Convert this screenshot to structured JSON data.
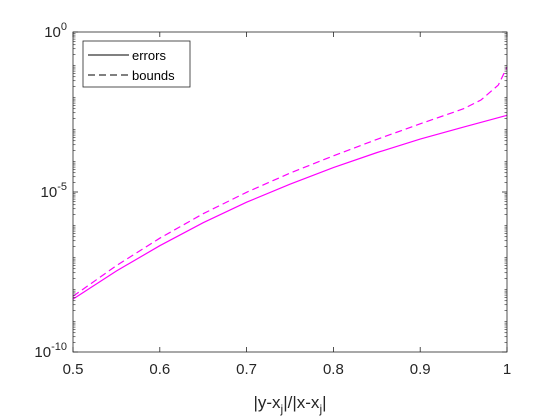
{
  "chart_data": {
    "type": "line",
    "title": "",
    "xlabel": {
      "parts": [
        {
          "text": "|y-x",
          "sub": false
        },
        {
          "text": "j",
          "sub": true
        },
        {
          "text": "|/|x-x",
          "sub": false
        },
        {
          "text": "j",
          "sub": true
        },
        {
          "text": "|",
          "sub": false
        }
      ]
    },
    "ylabel": "",
    "xlim": [
      0.5,
      1.0
    ],
    "ylim": [
      1e-10,
      1
    ],
    "yscale": "log",
    "grid": false,
    "x_ticks": [
      {
        "value": 0.5,
        "label": "0.5"
      },
      {
        "value": 0.6,
        "label": "0.6"
      },
      {
        "value": 0.7,
        "label": "0.7"
      },
      {
        "value": 0.8,
        "label": "0.8"
      },
      {
        "value": 0.9,
        "label": "0.9"
      },
      {
        "value": 1.0,
        "label": "1"
      }
    ],
    "y_ticks": [
      {
        "value": 1e-10,
        "base": "10",
        "exp": "-10"
      },
      {
        "value": 1e-05,
        "base": "10",
        "exp": "-5"
      },
      {
        "value": 1,
        "base": "10",
        "exp": "0"
      }
    ],
    "legend": {
      "position": "top-left",
      "entries": [
        {
          "label": "errors",
          "style": "solid",
          "color": "#000000"
        },
        {
          "label": "bounds",
          "style": "dashed",
          "color": "#000000"
        }
      ]
    },
    "series": [
      {
        "name": "errors",
        "style": "solid",
        "color": "#ff00ff",
        "x": [
          0.5,
          0.55,
          0.6,
          0.65,
          0.7,
          0.75,
          0.8,
          0.85,
          0.9,
          0.95,
          1.0
        ],
        "y": [
          4.5e-09,
          3.4e-08,
          2.1e-07,
          1.1e-06,
          4.8e-06,
          1.75e-05,
          5.8e-05,
          0.00017,
          0.00045,
          0.00107,
          0.0025
        ]
      },
      {
        "name": "bounds",
        "style": "dashed",
        "color": "#ff00ff",
        "x": [
          0.5,
          0.55,
          0.6,
          0.65,
          0.7,
          0.75,
          0.8,
          0.85,
          0.9,
          0.95,
          0.97,
          0.99,
          1.0
        ],
        "y": [
          5.5e-09,
          5e-08,
          3.6e-07,
          2.1e-06,
          9.8e-06,
          3.9e-05,
          0.000135,
          0.00044,
          0.00135,
          0.004,
          0.0075,
          0.022,
          0.08
        ]
      }
    ]
  }
}
